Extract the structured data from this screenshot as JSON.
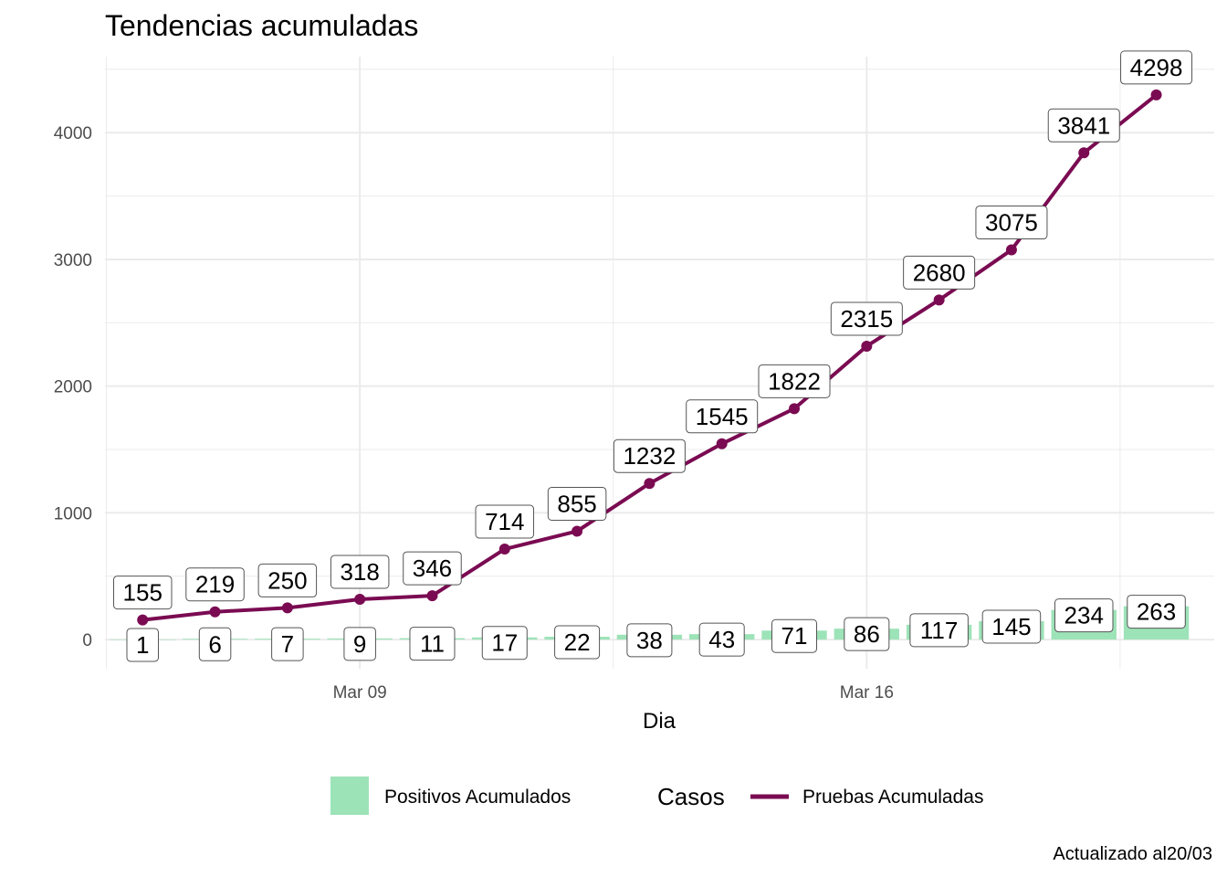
{
  "chart_data": {
    "type": "bar+line",
    "title": "Tendencias acumuladas",
    "xlabel": "Dia",
    "ylabel": "",
    "caption": "Actualizado al20/03",
    "x": [
      "2020-03-06",
      "2020-03-07",
      "2020-03-08",
      "2020-03-09",
      "2020-03-10",
      "2020-03-11",
      "2020-03-12",
      "2020-03-13",
      "2020-03-14",
      "2020-03-15",
      "2020-03-16",
      "2020-03-17",
      "2020-03-18",
      "2020-03-19",
      "2020-03-20"
    ],
    "x_ticks": [
      {
        "date": "2020-03-09",
        "label": "Mar 09"
      },
      {
        "date": "2020-03-16",
        "label": "Mar 16"
      }
    ],
    "y_ticks": [
      0,
      1000,
      2000,
      3000,
      4000
    ],
    "ylim": [
      -230,
      4600
    ],
    "grid": true,
    "legend": {
      "position": "bottom",
      "title": "Casos",
      "bar_label": "Positivos Acumulados",
      "line_label": "Pruebas Acumuladas"
    },
    "series": [
      {
        "name": "Positivos Acumulados",
        "kind": "bar",
        "color": "#9de3b8",
        "values": [
          1,
          6,
          7,
          9,
          11,
          17,
          22,
          38,
          43,
          71,
          86,
          117,
          145,
          234,
          263
        ]
      },
      {
        "name": "Pruebas Acumuladas",
        "kind": "line",
        "color": "#7a0b52",
        "values": [
          155,
          219,
          250,
          318,
          346,
          714,
          855,
          1232,
          1545,
          1822,
          2315,
          2680,
          3075,
          3841,
          4298
        ]
      }
    ]
  }
}
